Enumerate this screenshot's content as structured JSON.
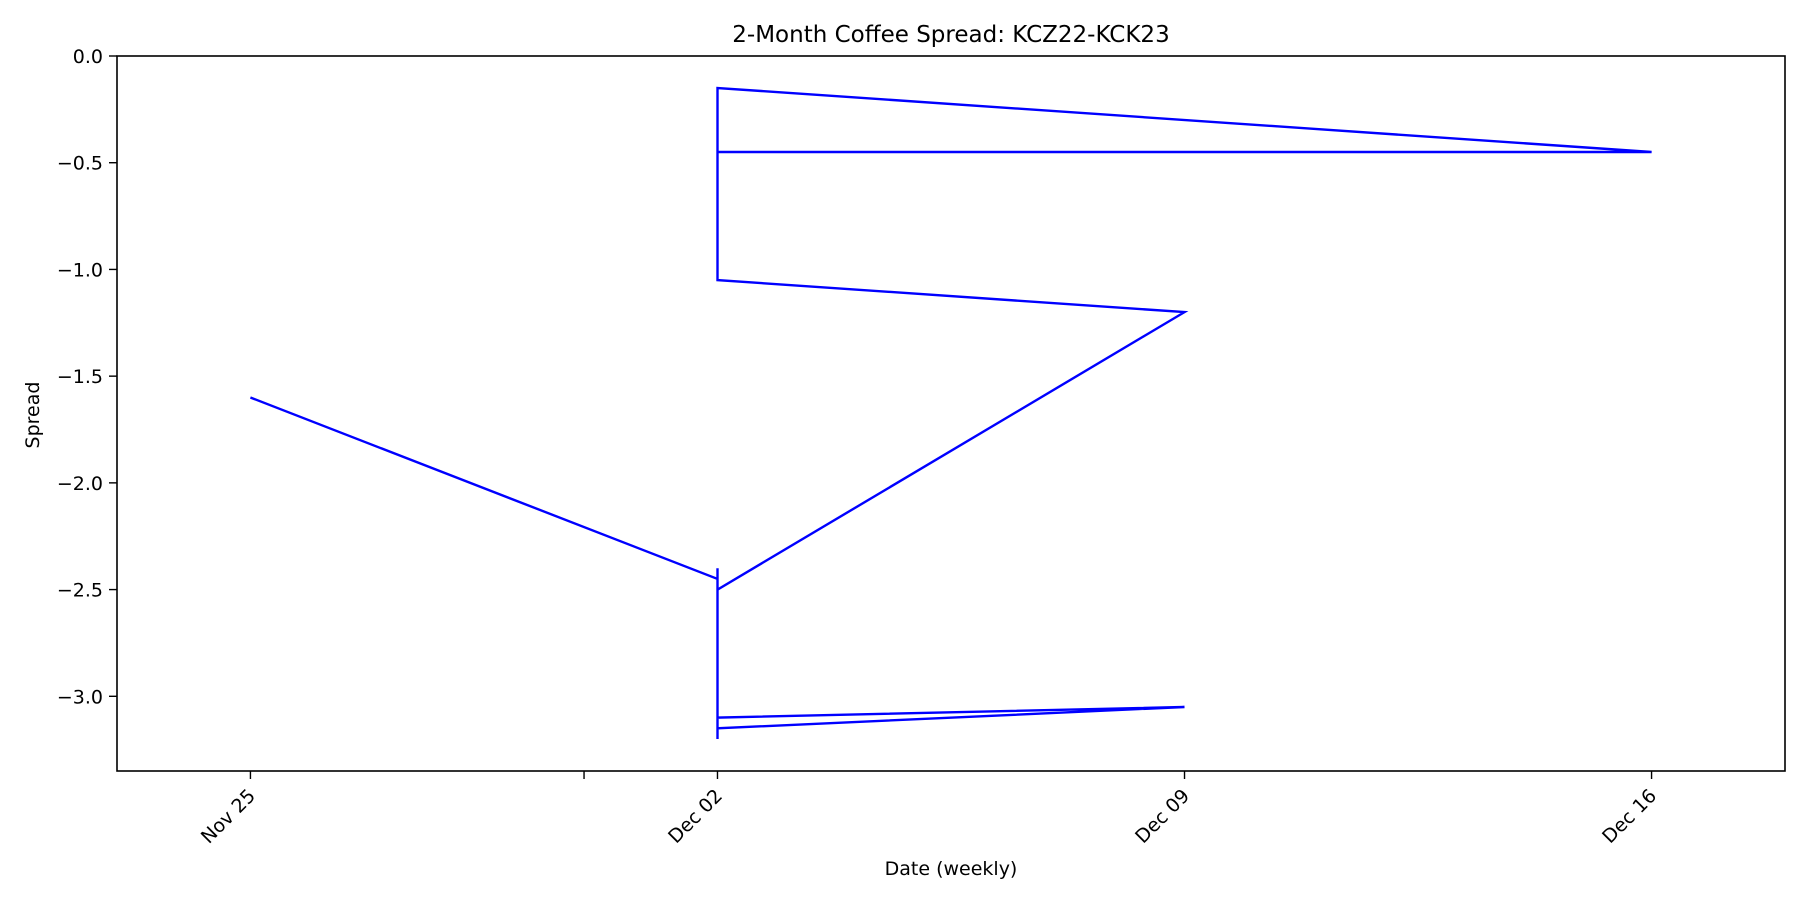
{
  "chart_data": {
    "type": "line",
    "title": "2-Month Coffee Spread: KCZ22-KCK23",
    "xlabel": "Date (weekly)",
    "ylabel": "Spread",
    "x_axis_type": "date",
    "xlim": [
      "2022-11-23",
      "2022-12-18"
    ],
    "ylim": [
      -3.35,
      0.0
    ],
    "x_ticks": [
      {
        "date": "2022-11-25",
        "label": "Nov 25"
      },
      {
        "date": "2022-11-30",
        "label": ""
      },
      {
        "date": "2022-12-02",
        "label": "Dec 02"
      },
      {
        "date": "2022-12-09",
        "label": "Dec 09"
      },
      {
        "date": "2022-12-16",
        "label": "Dec 16"
      }
    ],
    "y_ticks": [
      0.0,
      -0.5,
      -1.0,
      -1.5,
      -2.0,
      -2.5,
      -3.0
    ],
    "grid": false,
    "series": [
      {
        "color": "#0000ff",
        "points": [
          {
            "x": "2022-11-25",
            "y": -1.6
          },
          {
            "x": "2022-12-02",
            "y": -2.45
          },
          {
            "x": "2022-12-02",
            "y": -3.05
          },
          {
            "x": "2022-12-02",
            "y": -3.1
          },
          {
            "x": "2022-12-09",
            "y": -3.05
          },
          {
            "x": "2022-12-02",
            "y": -3.15
          },
          {
            "x": "2022-12-02",
            "y": -3.2
          },
          {
            "x": "2022-12-02",
            "y": -2.4
          },
          {
            "x": "2022-12-02",
            "y": -2.5
          },
          {
            "x": "2022-12-09",
            "y": -1.2
          },
          {
            "x": "2022-12-02",
            "y": -1.05
          },
          {
            "x": "2022-12-02",
            "y": -0.45
          },
          {
            "x": "2022-12-16",
            "y": -0.45
          },
          {
            "x": "2022-12-02",
            "y": -0.15
          },
          {
            "x": "2022-12-02",
            "y": -0.45
          }
        ]
      }
    ]
  }
}
